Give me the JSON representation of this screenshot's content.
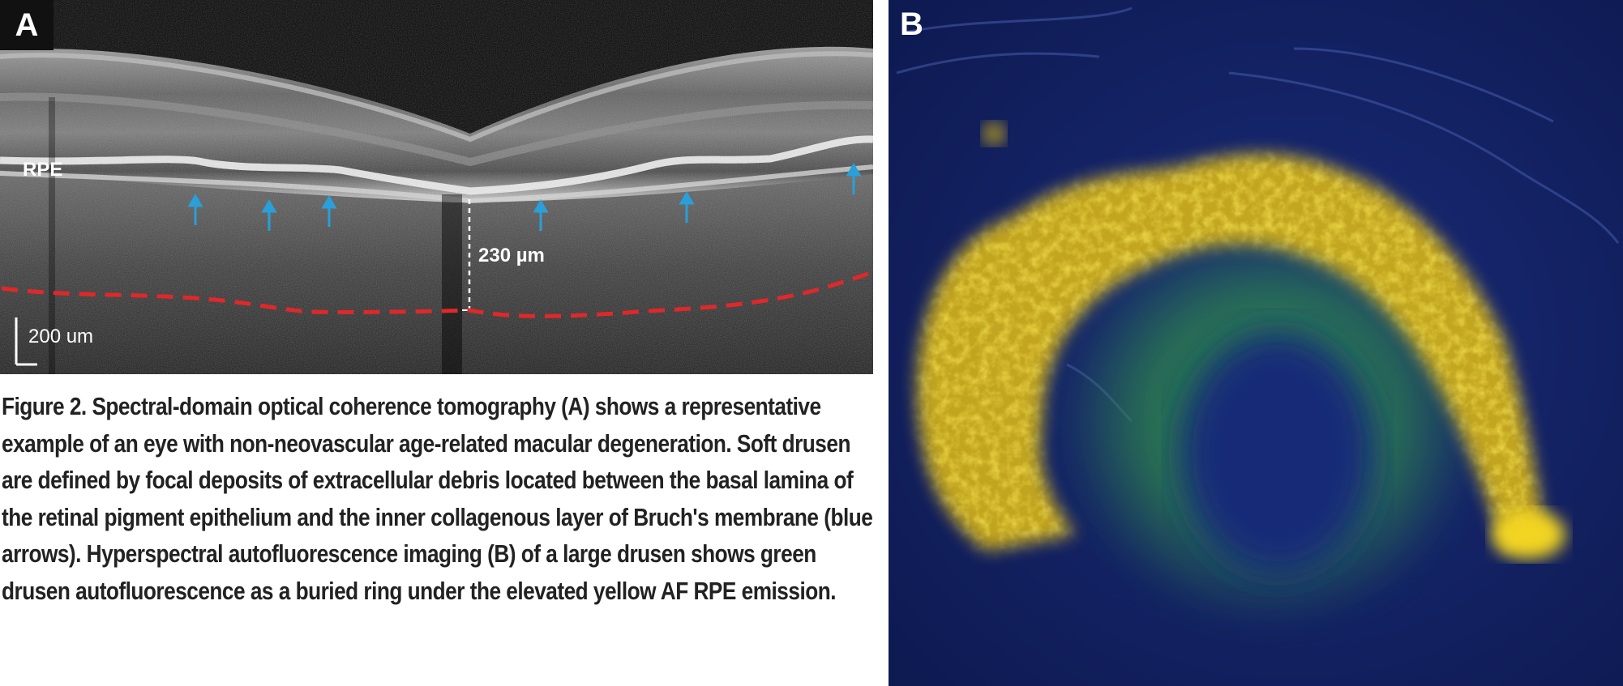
{
  "panel_a": {
    "label": "A",
    "rpe_label": "RPE",
    "thickness_label": "230 µm",
    "scale_bar_label": "200 um"
  },
  "panel_b": {
    "label": "B"
  },
  "caption": "Figure 2. Spectral-domain optical coherence tomography (A) shows a representative example of an eye with non-neovascular age-related macular degeneration. Soft drusen are defined by focal deposits of extracellular debris located between the basal lamina of the retinal pigment epithelium and the inner collagenous layer of Bruch's membrane (blue arrows). Hyperspectral autofluorescence imaging (B) of a large drusen shows green drusen autofluorescence as a buried ring under the elevated yellow AF RPE emission.",
  "colors": {
    "arrow": "#2a9fd8",
    "choroid_boundary": "#e0282a",
    "rpe_emission": "#e8c21a",
    "drusen_autofluorescence": "#2f8a4a",
    "background_b": "#12205e"
  }
}
